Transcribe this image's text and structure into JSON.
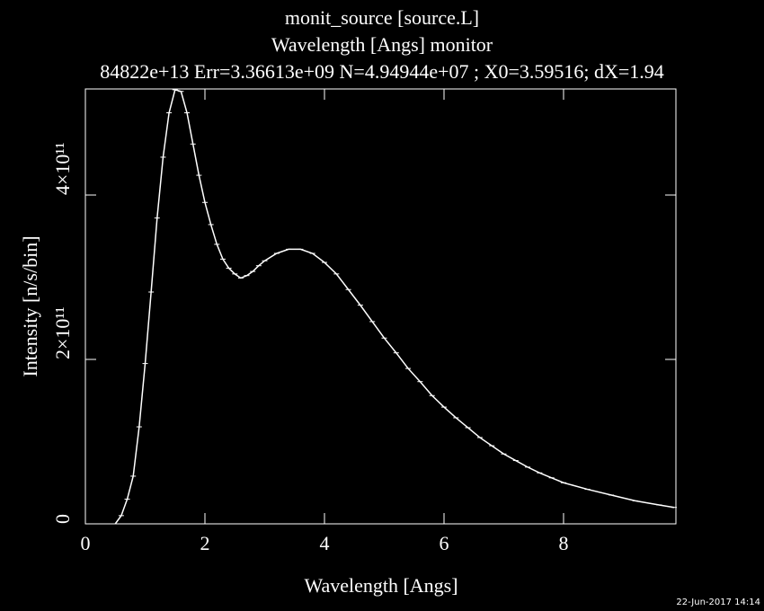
{
  "chart_data": {
    "type": "line",
    "title": "monit_source [source.L]",
    "subtitle": "Wavelength [Angs] monitor",
    "annotation": "84822e+13 Err=3.36613e+09 N=4.94944e+07 ; X0=3.59516; dX=1.94",
    "timestamp": "22-Jun-2017 14:14",
    "x_label": "Wavelength [Angs]",
    "y_label": "Intensity [n/s/bin]",
    "color": "#ffffff",
    "x": [
      0.5,
      0.6,
      0.7,
      0.8,
      0.9,
      1.0,
      1.1,
      1.2,
      1.3,
      1.4,
      1.5,
      1.6,
      1.7,
      1.8,
      1.9,
      2.0,
      2.1,
      2.2,
      2.3,
      2.4,
      2.5,
      2.6,
      2.7,
      2.8,
      2.9,
      3.0,
      3.2,
      3.4,
      3.6,
      3.8,
      4.0,
      4.2,
      4.4,
      4.6,
      4.8,
      5.0,
      5.2,
      5.4,
      5.6,
      5.8,
      6.0,
      6.2,
      6.4,
      6.6,
      6.8,
      7.0,
      7.2,
      7.4,
      7.6,
      7.8,
      8.0,
      8.4,
      8.8,
      9.2,
      9.6,
      9.85
    ],
    "values": [
      0,
      10000000000.0,
      30000000000.0,
      58000000000.0,
      118000000000.0,
      195000000000.0,
      282000000000.0,
      372000000000.0,
      446000000000.0,
      500000000000.0,
      528000000000.0,
      526000000000.0,
      500000000000.0,
      462000000000.0,
      424000000000.0,
      391000000000.0,
      364000000000.0,
      340000000000.0,
      322000000000.0,
      311000000000.0,
      304000000000.0,
      299000000000.0,
      302000000000.0,
      307000000000.0,
      314000000000.0,
      320000000000.0,
      329000000000.0,
      334000000000.0,
      334000000000.0,
      329000000000.0,
      318000000000.0,
      304000000000.0,
      285000000000.0,
      266000000000.0,
      246000000000.0,
      226000000000.0,
      208000000000.0,
      189000000000.0,
      173000000000.0,
      156000000000.0,
      142000000000.0,
      129000000000.0,
      117000000000.0,
      105000000000.0,
      95000000000.0,
      85000000000.0,
      77000000000.0,
      69000000000.0,
      62000000000.0,
      56000000000.0,
      50000000000.0,
      42000000000.0,
      35000000000.0,
      28000000000.0,
      23000000000.0,
      20000000000.0
    ],
    "xlim": [
      0,
      9.88
    ],
    "ylim": [
      0,
      529000000000.0
    ],
    "xticks": [
      0,
      2,
      4,
      6,
      8
    ],
    "yticks": [
      0,
      {
        "value": 200000000000.0,
        "label": "2×10¹¹"
      },
      {
        "value": 400000000000.0,
        "label": "4×10¹¹"
      }
    ]
  }
}
